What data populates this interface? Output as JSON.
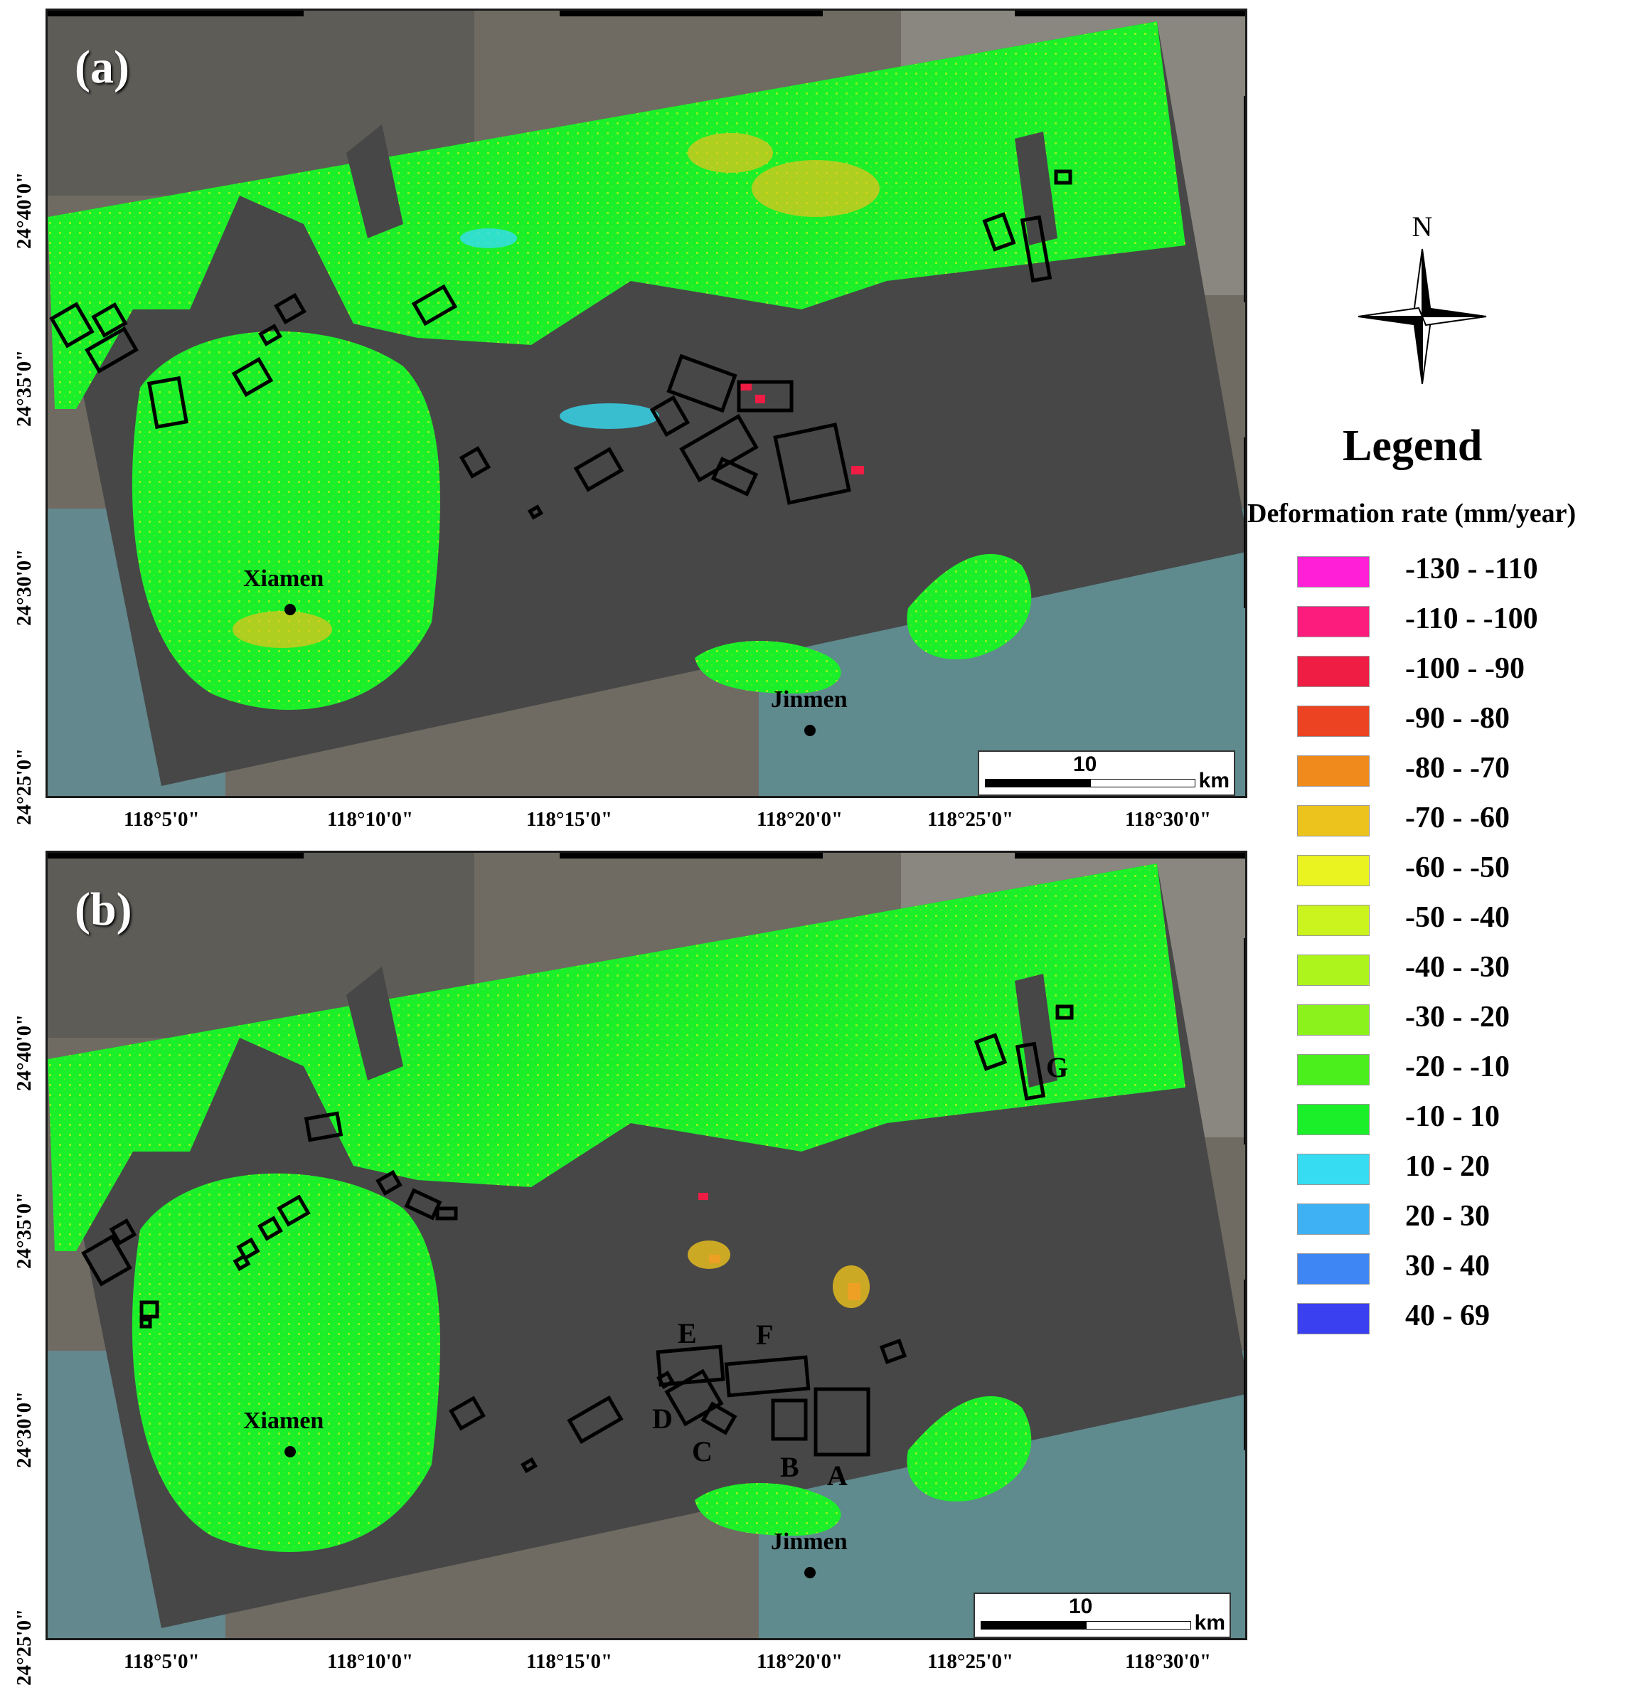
{
  "panels": [
    {
      "label": "(a)",
      "city_1": "Xiamen",
      "city_2": "Jinmen",
      "scale_value": "10",
      "scale_unit": "km"
    },
    {
      "label": "(b)",
      "city_1": "Xiamen",
      "city_2": "Jinmen",
      "scale_value": "10",
      "scale_unit": "km"
    }
  ],
  "region_labels": [
    "A",
    "B",
    "C",
    "D",
    "E",
    "F",
    "G"
  ],
  "longitude_ticks": [
    "118°5'0\"",
    "118°10'0\"",
    "118°15'0\"",
    "118°20'0\"",
    "118°25'0\"",
    "118°30'0\""
  ],
  "latitude_ticks": [
    "24°40'0\"",
    "24°35'0\"",
    "24°30'0\"",
    "24°25'0\""
  ],
  "north_label": "N",
  "legend": {
    "title": "Legend",
    "subtitle": "Deformation rate (mm/year)",
    "items": [
      {
        "label": "-130 - -110",
        "color": "#ff1fd6"
      },
      {
        "label": "-110 - -100",
        "color": "#fc1c7e"
      },
      {
        "label": "-100 - -90",
        "color": "#ef1c44"
      },
      {
        "label": "-90 - -80",
        "color": "#ec4322"
      },
      {
        "label": "-80 - -70",
        "color": "#f08a1c"
      },
      {
        "label": "-70 - -60",
        "color": "#ecc21c"
      },
      {
        "label": "-60 - -50",
        "color": "#eaf21f"
      },
      {
        "label": "-50 - -40",
        "color": "#cbf31d"
      },
      {
        "label": "-40 - -30",
        "color": "#acf41b"
      },
      {
        "label": "-30 - -20",
        "color": "#8cf21c"
      },
      {
        "label": "-20 - -10",
        "color": "#4bef1c"
      },
      {
        "label": "-10 - 10",
        "color": "#1bef2a"
      },
      {
        "label": "10 - 20",
        "color": "#36dcf2"
      },
      {
        "label": "20 - 30",
        "color": "#3db1f4"
      },
      {
        "label": "30 - 40",
        "color": "#3e86f3"
      },
      {
        "label": "40 - 69",
        "color": "#3a3ff0"
      }
    ]
  },
  "colors": {
    "stable": "#1bef2a",
    "water": "#4a4a4a",
    "satellite": "#6f6b62"
  }
}
